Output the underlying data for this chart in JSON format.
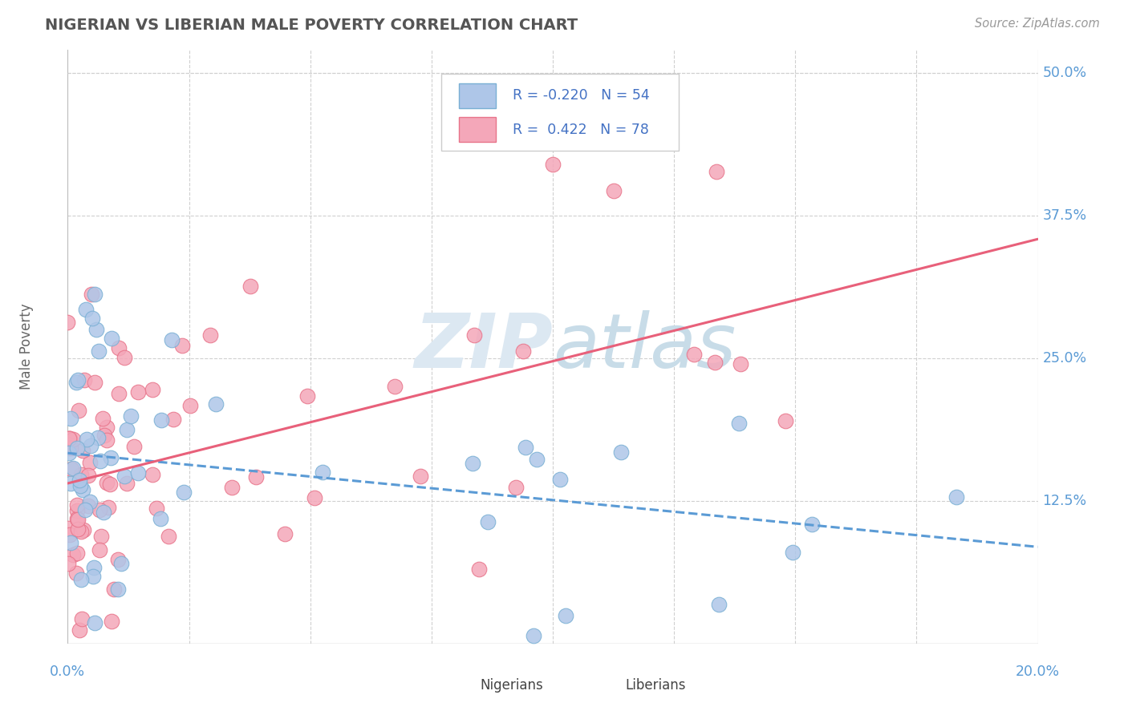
{
  "title": "NIGERIAN VS LIBERIAN MALE POVERTY CORRELATION CHART",
  "source": "Source: ZipAtlas.com",
  "ylabel": "Male Poverty",
  "xlim": [
    0.0,
    0.2
  ],
  "ylim": [
    0.0,
    0.52
  ],
  "yticks": [
    0.125,
    0.25,
    0.375,
    0.5
  ],
  "ytick_labels": [
    "12.5%",
    "25.0%",
    "37.5%",
    "50.0%"
  ],
  "nigerian_R": -0.22,
  "nigerian_N": 54,
  "liberian_R": 0.422,
  "liberian_N": 78,
  "nigerian_color": "#aec6e8",
  "liberian_color": "#f4a7b9",
  "nigerian_edge_color": "#7ab0d4",
  "liberian_edge_color": "#e8748a",
  "nigerian_line_color": "#5b9bd5",
  "liberian_line_color": "#e8607a",
  "background_color": "#ffffff",
  "grid_color": "#d0d0d0",
  "title_color": "#555555",
  "watermark_color": "#dce8f0",
  "axis_label_color": "#5b9bd5",
  "legend_R_neg_color": "#e05050",
  "legend_R_pos_color": "#e05050",
  "legend_N_color": "#4472c4",
  "legend_text_color": "#333333"
}
